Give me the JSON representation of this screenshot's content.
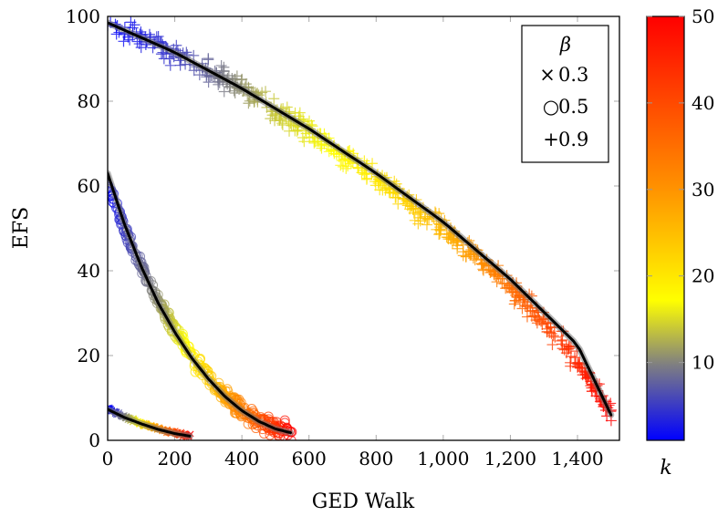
{
  "chart_data": {
    "type": "scatter",
    "title": "",
    "xlabel": "GED Walk",
    "ylabel": "EFS",
    "xlim": [
      0,
      1525
    ],
    "ylim": [
      0,
      100
    ],
    "xticks": [
      0,
      200,
      400,
      600,
      800,
      1000,
      1200,
      1400
    ],
    "xtick_labels": [
      "0",
      "200",
      "400",
      "600",
      "800",
      "1,000",
      "1,200",
      "1,400"
    ],
    "yticks": [
      0,
      20,
      40,
      60,
      80,
      100
    ],
    "ytick_labels": [
      "0",
      "20",
      "40",
      "60",
      "80",
      "100"
    ],
    "grid": "major ticks only",
    "legend": {
      "title": "β",
      "position": "upper right",
      "entries": [
        {
          "marker": "×",
          "label": "0.3"
        },
        {
          "marker": "○",
          "label": "0.5"
        },
        {
          "marker": "+",
          "label": "0.9"
        }
      ]
    },
    "colorbar": {
      "label": "k",
      "range": [
        1,
        50
      ],
      "ticks": [
        10,
        20,
        30,
        40,
        50
      ],
      "colormap": [
        "#0000ff",
        "#808080",
        "#ffff00",
        "#ff8c00",
        "#ff0000"
      ]
    },
    "series": [
      {
        "name": "β = 0.3",
        "marker": "x",
        "x": [
          0,
          25,
          50,
          75,
          100,
          125,
          150,
          175,
          200,
          225,
          245
        ],
        "y": [
          7.5,
          6.5,
          5.6,
          4.8,
          4.0,
          3.4,
          2.8,
          2.2,
          1.7,
          1.3,
          1.0
        ],
        "k": [
          1,
          5,
          10,
          15,
          20,
          25,
          30,
          35,
          40,
          45,
          50
        ],
        "fit_x": [
          0,
          50,
          100,
          150,
          200,
          245
        ],
        "fit_y": [
          7.3,
          5.4,
          3.9,
          2.6,
          1.6,
          1.0
        ]
      },
      {
        "name": "β = 0.5",
        "marker": "o",
        "x": [
          0,
          25,
          50,
          100,
          150,
          200,
          250,
          300,
          350,
          400,
          450,
          500,
          545
        ],
        "y": [
          60,
          56,
          50,
          41,
          33,
          26,
          20,
          15,
          10.5,
          7,
          4.5,
          2.8,
          2
        ],
        "k": [
          1,
          3,
          5,
          8,
          11,
          15,
          19,
          23,
          28,
          33,
          38,
          44,
          50
        ],
        "fit_x": [
          0,
          50,
          100,
          150,
          200,
          250,
          300,
          350,
          400,
          450,
          500,
          545
        ],
        "fit_y": [
          63,
          51,
          41,
          32.5,
          25.5,
          19.5,
          14.5,
          10.3,
          7,
          4.5,
          2.7,
          1.8
        ]
      },
      {
        "name": "β = 0.9",
        "marker": "+",
        "x": [
          0,
          100,
          200,
          300,
          400,
          500,
          600,
          700,
          800,
          900,
          1000,
          1100,
          1200,
          1300,
          1400,
          1500
        ],
        "y": [
          98,
          95,
          91,
          87,
          83,
          78,
          73,
          67,
          62,
          56,
          50,
          43,
          36,
          28,
          19,
          6
        ],
        "k": [
          1,
          3,
          5,
          8,
          11,
          14,
          16,
          18,
          20,
          23,
          26,
          30,
          35,
          40,
          45,
          50
        ],
        "fit_x": [
          0,
          200,
          400,
          600,
          800,
          1000,
          1200,
          1400,
          1500
        ],
        "fit_y": [
          98.5,
          91.5,
          83,
          73.5,
          63,
          51.5,
          38,
          22.5,
          6
        ]
      }
    ]
  }
}
